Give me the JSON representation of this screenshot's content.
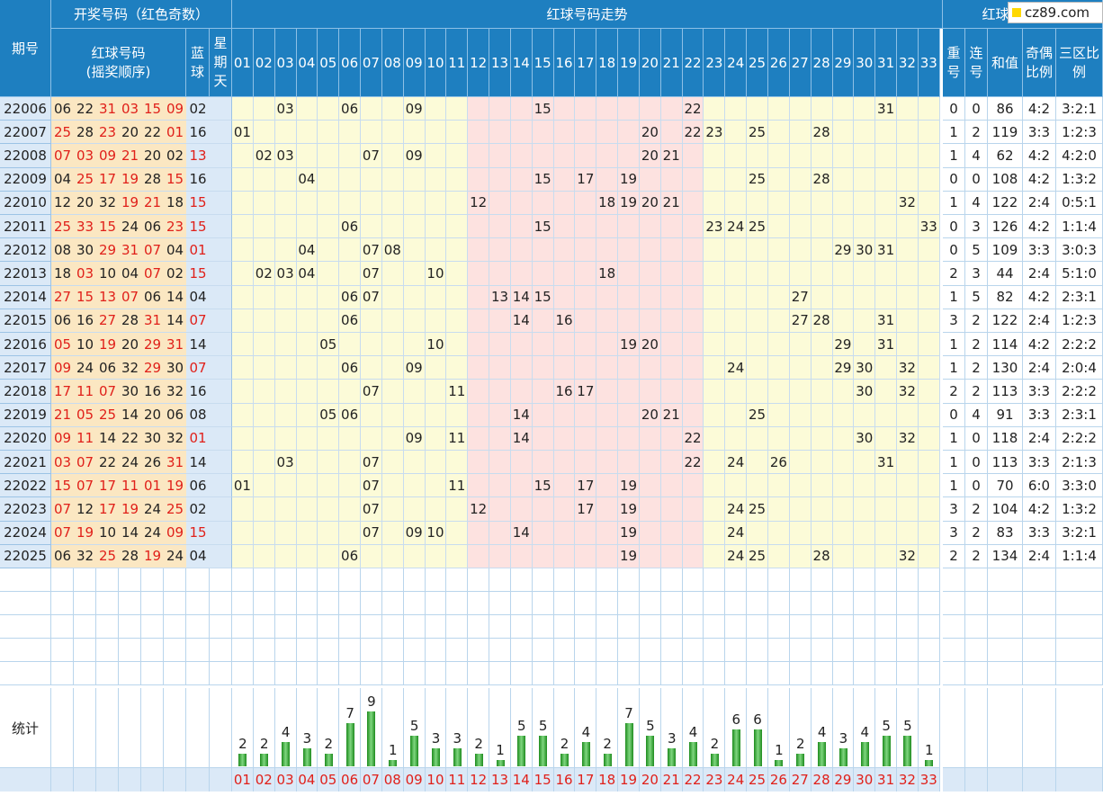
{
  "headers": {
    "issue": "期号",
    "draw_group": "开奖号码（红色奇数）",
    "red_balls_line1": "红球号码",
    "red_balls_line2": "(摇奖顺序)",
    "blue": "蓝球",
    "weekday": "星期天",
    "trend_group": "红球号码走势",
    "analysis_group": "红球号码分析",
    "repeat": "重号",
    "consecutive": "连号",
    "sum": "和值",
    "odd_even": "奇偶比例",
    "three_zone": "三区比例",
    "stats": "统计"
  },
  "logo": {
    "text": "cz89.com"
  },
  "columns": [
    "01",
    "02",
    "03",
    "04",
    "05",
    "06",
    "07",
    "08",
    "09",
    "10",
    "11",
    "12",
    "13",
    "14",
    "15",
    "16",
    "17",
    "18",
    "19",
    "20",
    "21",
    "22",
    "23",
    "24",
    "25",
    "26",
    "27",
    "28",
    "29",
    "30",
    "31",
    "32",
    "33"
  ],
  "rows": [
    {
      "issue": "22006",
      "red": [
        "06",
        "22",
        "31",
        "03",
        "15",
        "09"
      ],
      "blue": "02",
      "trend": [
        "03",
        "06",
        "09",
        "15",
        "22",
        "31"
      ],
      "repeat": "0",
      "consec": "0",
      "sum": "86",
      "oe": "4:2",
      "zone": "3:2:1"
    },
    {
      "issue": "22007",
      "red": [
        "25",
        "28",
        "23",
        "20",
        "22",
        "01"
      ],
      "blue": "16",
      "trend": [
        "01",
        "20",
        "22",
        "23",
        "25",
        "28"
      ],
      "repeat": "1",
      "consec": "2",
      "sum": "119",
      "oe": "3:3",
      "zone": "1:2:3"
    },
    {
      "issue": "22008",
      "red": [
        "07",
        "03",
        "09",
        "21",
        "20",
        "02"
      ],
      "blue": "13",
      "trend": [
        "02",
        "03",
        "07",
        "09",
        "20",
        "21"
      ],
      "repeat": "1",
      "consec": "4",
      "sum": "62",
      "oe": "4:2",
      "zone": "4:2:0"
    },
    {
      "issue": "22009",
      "red": [
        "04",
        "25",
        "17",
        "19",
        "28",
        "15"
      ],
      "blue": "16",
      "trend": [
        "04",
        "15",
        "17",
        "19",
        "25",
        "28"
      ],
      "repeat": "0",
      "consec": "0",
      "sum": "108",
      "oe": "4:2",
      "zone": "1:3:2"
    },
    {
      "issue": "22010",
      "red": [
        "12",
        "20",
        "32",
        "19",
        "21",
        "18"
      ],
      "blue": "15",
      "trend": [
        "12",
        "18",
        "19",
        "20",
        "21",
        "32"
      ],
      "repeat": "1",
      "consec": "4",
      "sum": "122",
      "oe": "2:4",
      "zone": "0:5:1"
    },
    {
      "issue": "22011",
      "red": [
        "25",
        "33",
        "15",
        "24",
        "06",
        "23"
      ],
      "blue": "15",
      "trend": [
        "06",
        "15",
        "23",
        "24",
        "25",
        "33"
      ],
      "repeat": "0",
      "consec": "3",
      "sum": "126",
      "oe": "4:2",
      "zone": "1:1:4"
    },
    {
      "issue": "22012",
      "red": [
        "08",
        "30",
        "29",
        "31",
        "07",
        "04"
      ],
      "blue": "01",
      "trend": [
        "04",
        "07",
        "08",
        "29",
        "30",
        "31"
      ],
      "repeat": "0",
      "consec": "5",
      "sum": "109",
      "oe": "3:3",
      "zone": "3:0:3"
    },
    {
      "issue": "22013",
      "red": [
        "18",
        "03",
        "10",
        "04",
        "07",
        "02"
      ],
      "blue": "15",
      "trend": [
        "02",
        "03",
        "04",
        "07",
        "10",
        "18"
      ],
      "repeat": "2",
      "consec": "3",
      "sum": "44",
      "oe": "2:4",
      "zone": "5:1:0"
    },
    {
      "issue": "22014",
      "red": [
        "27",
        "15",
        "13",
        "07",
        "06",
        "14"
      ],
      "blue": "04",
      "trend": [
        "06",
        "07",
        "13",
        "14",
        "15",
        "27"
      ],
      "repeat": "1",
      "consec": "5",
      "sum": "82",
      "oe": "4:2",
      "zone": "2:3:1"
    },
    {
      "issue": "22015",
      "red": [
        "06",
        "16",
        "27",
        "28",
        "31",
        "14"
      ],
      "blue": "07",
      "trend": [
        "06",
        "14",
        "16",
        "27",
        "28",
        "31"
      ],
      "repeat": "3",
      "consec": "2",
      "sum": "122",
      "oe": "2:4",
      "zone": "1:2:3"
    },
    {
      "issue": "22016",
      "red": [
        "05",
        "10",
        "19",
        "20",
        "29",
        "31"
      ],
      "blue": "14",
      "trend": [
        "05",
        "10",
        "19",
        "20",
        "29",
        "31"
      ],
      "repeat": "1",
      "consec": "2",
      "sum": "114",
      "oe": "4:2",
      "zone": "2:2:2"
    },
    {
      "issue": "22017",
      "red": [
        "09",
        "24",
        "06",
        "32",
        "29",
        "30"
      ],
      "blue": "07",
      "trend": [
        "06",
        "09",
        "24",
        "29",
        "30",
        "32"
      ],
      "repeat": "1",
      "consec": "2",
      "sum": "130",
      "oe": "2:4",
      "zone": "2:0:4"
    },
    {
      "issue": "22018",
      "red": [
        "17",
        "11",
        "07",
        "30",
        "16",
        "32"
      ],
      "blue": "16",
      "trend": [
        "07",
        "11",
        "16",
        "17",
        "30",
        "32"
      ],
      "repeat": "2",
      "consec": "2",
      "sum": "113",
      "oe": "3:3",
      "zone": "2:2:2"
    },
    {
      "issue": "22019",
      "red": [
        "21",
        "05",
        "25",
        "14",
        "20",
        "06"
      ],
      "blue": "08",
      "trend": [
        "05",
        "06",
        "14",
        "20",
        "21",
        "25"
      ],
      "repeat": "0",
      "consec": "4",
      "sum": "91",
      "oe": "3:3",
      "zone": "2:3:1"
    },
    {
      "issue": "22020",
      "red": [
        "09",
        "11",
        "14",
        "22",
        "30",
        "32"
      ],
      "blue": "01",
      "trend": [
        "09",
        "11",
        "14",
        "22",
        "30",
        "32"
      ],
      "repeat": "1",
      "consec": "0",
      "sum": "118",
      "oe": "2:4",
      "zone": "2:2:2"
    },
    {
      "issue": "22021",
      "red": [
        "03",
        "07",
        "22",
        "24",
        "26",
        "31"
      ],
      "blue": "14",
      "trend": [
        "03",
        "07",
        "22",
        "24",
        "26",
        "31"
      ],
      "repeat": "1",
      "consec": "0",
      "sum": "113",
      "oe": "3:3",
      "zone": "2:1:3"
    },
    {
      "issue": "22022",
      "red": [
        "15",
        "07",
        "17",
        "11",
        "01",
        "19"
      ],
      "blue": "06",
      "trend": [
        "01",
        "07",
        "11",
        "15",
        "17",
        "19"
      ],
      "repeat": "1",
      "consec": "0",
      "sum": "70",
      "oe": "6:0",
      "zone": "3:3:0"
    },
    {
      "issue": "22023",
      "red": [
        "07",
        "12",
        "17",
        "19",
        "24",
        "25"
      ],
      "blue": "02",
      "trend": [
        "07",
        "12",
        "17",
        "19",
        "24",
        "25"
      ],
      "repeat": "3",
      "consec": "2",
      "sum": "104",
      "oe": "4:2",
      "zone": "1:3:2"
    },
    {
      "issue": "22024",
      "red": [
        "07",
        "19",
        "10",
        "14",
        "24",
        "09"
      ],
      "blue": "15",
      "trend": [
        "07",
        "09",
        "10",
        "14",
        "19",
        "24"
      ],
      "repeat": "3",
      "consec": "2",
      "sum": "83",
      "oe": "3:3",
      "zone": "3:2:1"
    },
    {
      "issue": "22025",
      "red": [
        "06",
        "32",
        "25",
        "28",
        "19",
        "24"
      ],
      "blue": "04",
      "trend": [
        "06",
        "19",
        "24",
        "25",
        "28",
        "32"
      ],
      "repeat": "2",
      "consec": "2",
      "sum": "134",
      "oe": "2:4",
      "zone": "1:1:4"
    }
  ],
  "chart_data": {
    "type": "bar",
    "categories": [
      "01",
      "02",
      "03",
      "04",
      "05",
      "06",
      "07",
      "08",
      "09",
      "10",
      "11",
      "12",
      "13",
      "14",
      "15",
      "16",
      "17",
      "18",
      "19",
      "20",
      "21",
      "22",
      "23",
      "24",
      "25",
      "26",
      "27",
      "28",
      "29",
      "30",
      "31",
      "32",
      "33"
    ],
    "values": [
      2,
      2,
      4,
      3,
      2,
      7,
      9,
      1,
      5,
      3,
      3,
      2,
      1,
      5,
      5,
      2,
      4,
      2,
      7,
      5,
      3,
      4,
      2,
      6,
      6,
      1,
      2,
      4,
      3,
      4,
      5,
      5,
      1
    ],
    "xlabel": "",
    "ylabel": "",
    "color": "#2e9b2e"
  }
}
